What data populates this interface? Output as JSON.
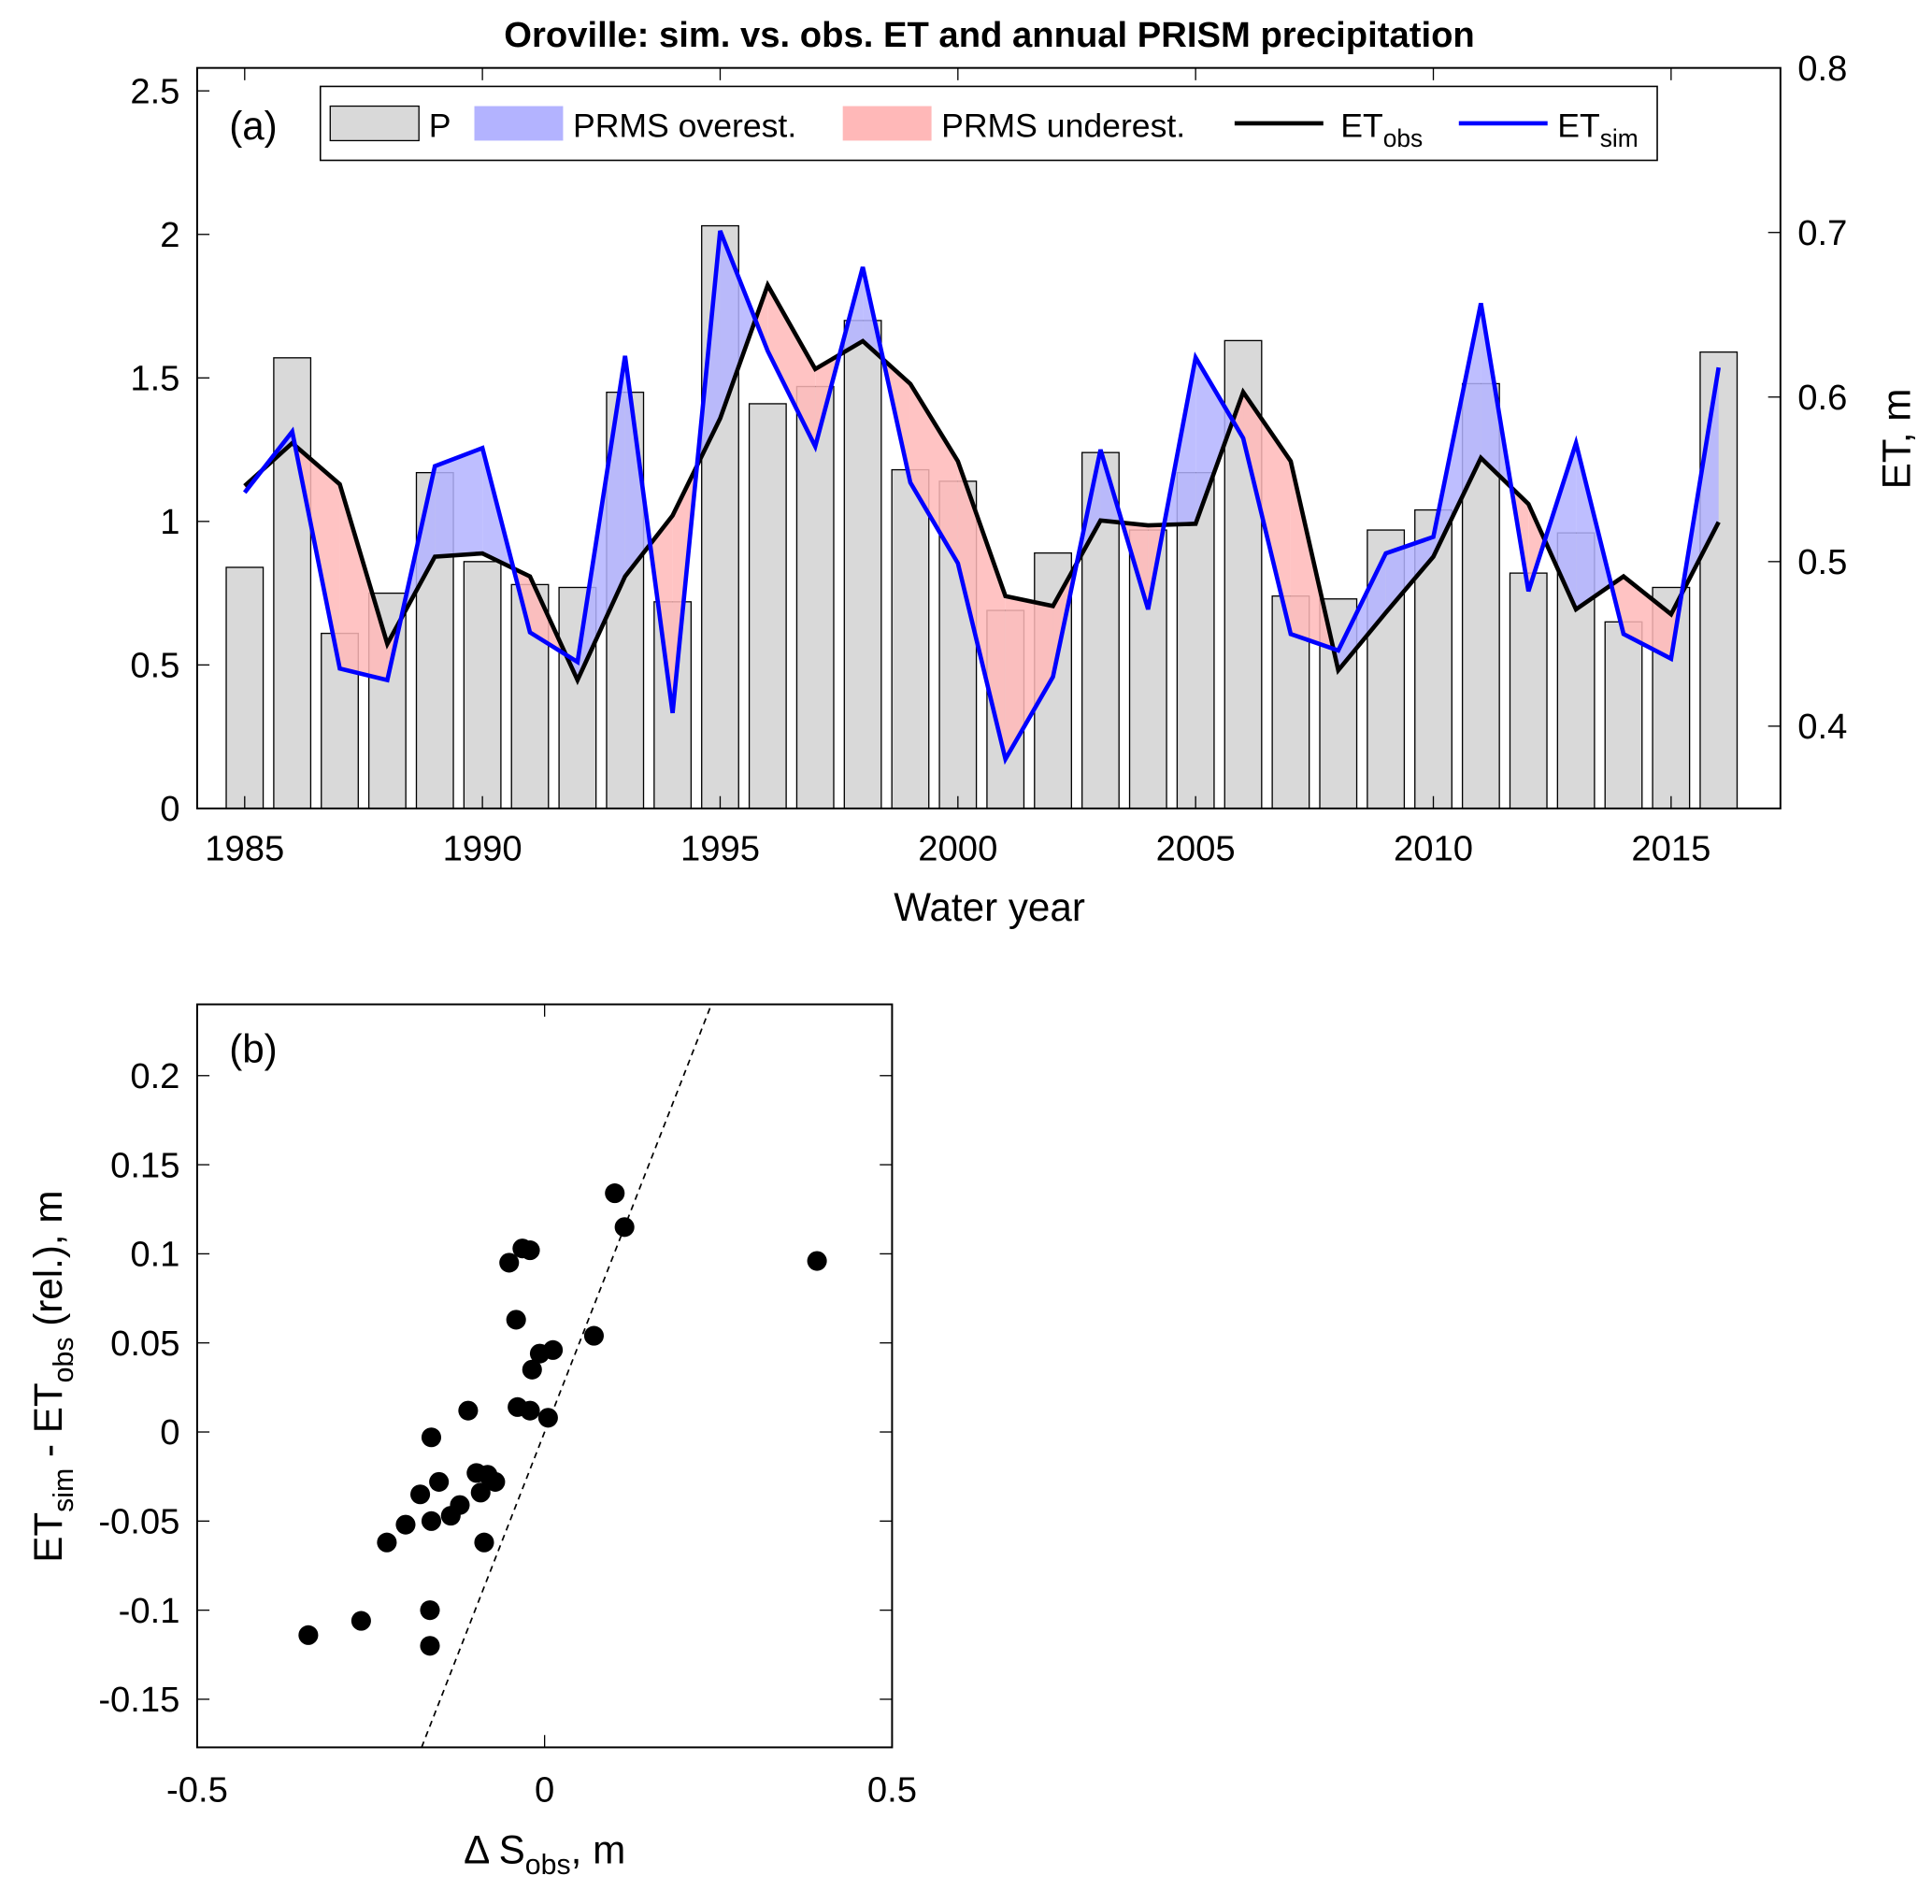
{
  "chart_data": [
    {
      "type": "bar+line",
      "title": "Oroville: sim. vs. obs. ET and annual PRISM precipitation",
      "panel_label": "(a)",
      "xlabel": "Water year",
      "ylabel_right": "ET, m",
      "xlim": [
        1984,
        2017.3
      ],
      "ylim_left": [
        0,
        2.58
      ],
      "ylim_right": [
        0.35,
        0.8
      ],
      "xticks": [
        1985,
        1990,
        1995,
        2000,
        2005,
        2010,
        2015
      ],
      "yticks_left": [
        0,
        0.5,
        1,
        1.5,
        2,
        2.5
      ],
      "yticks_left_labels": [
        "0",
        "0.5",
        "1",
        "1.5",
        "2",
        "2.5"
      ],
      "yticks_right": [
        0.4,
        0.5,
        0.6,
        0.7,
        0.8
      ],
      "yticks_right_labels": [
        "0.4",
        "0.5",
        "0.6",
        "0.7",
        "0.8"
      ],
      "legend": {
        "placement": "top",
        "entries": [
          {
            "label": "P"
          },
          {
            "label": "PRMS overest."
          },
          {
            "label": "PRMS underest."
          },
          {
            "label": "ET",
            "sub": "obs"
          },
          {
            "label": "ET",
            "sub": "sim"
          }
        ]
      },
      "years": [
        1985,
        1986,
        1987,
        1988,
        1989,
        1990,
        1991,
        1992,
        1993,
        1994,
        1995,
        1996,
        1997,
        1998,
        1999,
        2000,
        2001,
        2002,
        2003,
        2004,
        2005,
        2006,
        2007,
        2008,
        2009,
        2010,
        2011,
        2012,
        2013,
        2014,
        2015,
        2016
      ],
      "P": [
        0.84,
        1.57,
        0.61,
        0.75,
        1.17,
        0.86,
        0.78,
        0.77,
        1.45,
        0.72,
        2.03,
        1.41,
        1.47,
        1.7,
        1.18,
        1.14,
        0.69,
        0.89,
        1.24,
        0.97,
        1.17,
        1.63,
        0.74,
        0.73,
        0.97,
        1.04,
        1.48,
        0.82,
        0.96,
        0.65,
        0.77,
        1.59
      ],
      "ET_obs": [
        0.546,
        0.572,
        0.547,
        0.45,
        0.503,
        0.505,
        0.491,
        0.428,
        0.491,
        0.528,
        0.587,
        0.668,
        0.617,
        0.634,
        0.608,
        0.561,
        0.479,
        0.473,
        0.525,
        0.522,
        0.523,
        0.603,
        0.561,
        0.434,
        0.469,
        0.503,
        0.563,
        0.535,
        0.471,
        0.491,
        0.468,
        0.524
      ],
      "ET_sim": [
        0.542,
        0.579,
        0.435,
        0.428,
        0.558,
        0.569,
        0.457,
        0.439,
        0.625,
        0.408,
        0.701,
        0.628,
        0.57,
        0.679,
        0.548,
        0.499,
        0.38,
        0.43,
        0.568,
        0.471,
        0.624,
        0.575,
        0.456,
        0.446,
        0.505,
        0.515,
        0.657,
        0.482,
        0.572,
        0.456,
        0.441,
        0.618
      ],
      "colors": {
        "bar": "#d9d9d9",
        "over": "#b3b3ff",
        "under": "#ffb8b8",
        "obs": "#000000",
        "sim": "#0000ff"
      }
    },
    {
      "type": "scatter",
      "panel_label": "(b)",
      "xlabel": "Δ S",
      "xlabel_sub": "obs",
      "xlabel_suffix": ", m",
      "ylabel_parts": [
        "ET",
        "sim",
        " - ET",
        "obs",
        " (rel.), m"
      ],
      "xlim": [
        -0.5,
        0.5
      ],
      "ylim": [
        -0.177,
        0.24
      ],
      "xticks": [
        -0.5,
        0,
        0.5
      ],
      "xticks_labels": [
        "-0.5",
        "0",
        "0.5"
      ],
      "yticks": [
        -0.15,
        -0.1,
        -0.05,
        0,
        0.05,
        0.1,
        0.15,
        0.2
      ],
      "yticks_labels": [
        "-0.15",
        "-0.1",
        "-0.05",
        "0",
        "0.05",
        "0.1",
        "0.15",
        "0.2"
      ],
      "reference_line": "1:1 dashed",
      "points": [
        [
          -0.34,
          -0.114
        ],
        [
          -0.264,
          -0.106
        ],
        [
          -0.227,
          -0.062
        ],
        [
          -0.2,
          -0.052
        ],
        [
          -0.179,
          -0.035
        ],
        [
          -0.165,
          -0.1
        ],
        [
          -0.165,
          -0.12
        ],
        [
          -0.163,
          -0.05
        ],
        [
          -0.163,
          -0.003
        ],
        [
          -0.152,
          -0.028
        ],
        [
          -0.135,
          -0.047
        ],
        [
          -0.122,
          -0.041
        ],
        [
          -0.11,
          0.012
        ],
        [
          -0.098,
          -0.023
        ],
        [
          -0.092,
          -0.034
        ],
        [
          -0.087,
          -0.062
        ],
        [
          -0.082,
          -0.024
        ],
        [
          -0.071,
          -0.028
        ],
        [
          -0.051,
          0.095
        ],
        [
          -0.041,
          0.063
        ],
        [
          -0.039,
          0.014
        ],
        [
          -0.032,
          0.103
        ],
        [
          -0.021,
          0.102
        ],
        [
          -0.021,
          0.012
        ],
        [
          -0.018,
          0.035
        ],
        [
          -0.007,
          0.044
        ],
        [
          0.005,
          0.008
        ],
        [
          0.012,
          0.046
        ],
        [
          0.071,
          0.054
        ],
        [
          0.101,
          0.134
        ],
        [
          0.115,
          0.115
        ],
        [
          0.392,
          0.096
        ]
      ]
    }
  ]
}
